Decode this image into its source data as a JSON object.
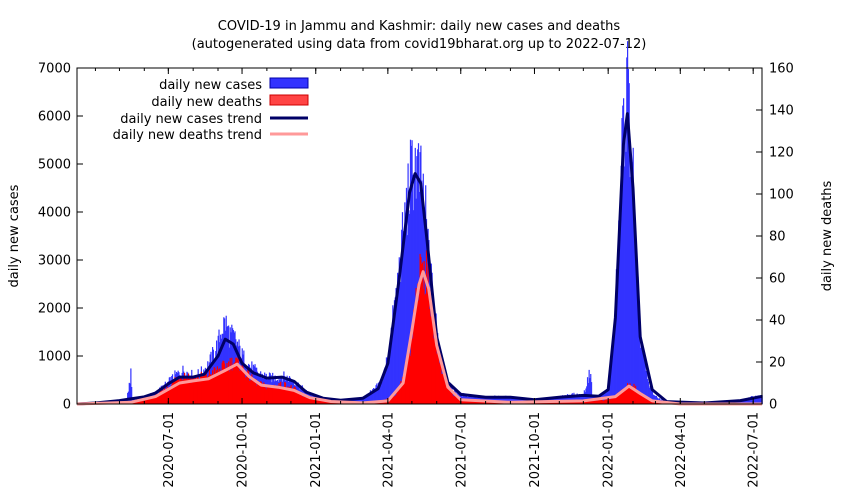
{
  "chart_data": {
    "type": "bar",
    "title": "COVID-19 in Jammu and Kashmir: daily new cases and deaths",
    "subtitle": "(autogenerated using data from covid19bharat.org up to 2022-07-12)",
    "ylabel": "daily new cases",
    "y2label": "daily new deaths",
    "ylim": [
      0,
      7000
    ],
    "y2lim": [
      0,
      160
    ],
    "yticks": [
      0,
      1000,
      2000,
      3000,
      4000,
      5000,
      6000,
      7000
    ],
    "y2ticks": [
      0,
      20,
      40,
      60,
      80,
      100,
      120,
      140,
      160
    ],
    "yticklabels": [
      "0",
      "1000",
      "2000",
      "3000",
      "4000",
      "5000",
      "6000",
      "7000"
    ],
    "y2ticklabels": [
      "0",
      "20",
      "40",
      "60",
      "80",
      "100",
      "120",
      "140",
      "160"
    ],
    "xlim": [
      "2020-03-09",
      "2022-07-12"
    ],
    "xticks": [
      "2020-07-01",
      "2020-10-01",
      "2021-01-01",
      "2021-04-01",
      "2021-07-01",
      "2021-10-01",
      "2022-01-01",
      "2022-04-01",
      "2022-07-01"
    ],
    "legend_position": "top-left",
    "series": [
      {
        "name": "daily new cases",
        "kind": "bars",
        "axis": "y",
        "color": "#3333ff",
        "points": [
          [
            "2020-03-09",
            0
          ],
          [
            "2020-04-01",
            20
          ],
          [
            "2020-04-25",
            70
          ],
          [
            "2020-05-10",
            90
          ],
          [
            "2020-05-15",
            620
          ],
          [
            "2020-05-17",
            80
          ],
          [
            "2020-06-01",
            150
          ],
          [
            "2020-06-15",
            230
          ],
          [
            "2020-07-01",
            450
          ],
          [
            "2020-07-10",
            600
          ],
          [
            "2020-07-20",
            700
          ],
          [
            "2020-08-01",
            580
          ],
          [
            "2020-08-10",
            640
          ],
          [
            "2020-08-20",
            820
          ],
          [
            "2020-09-01",
            1250
          ],
          [
            "2020-09-06",
            1600
          ],
          [
            "2020-09-10",
            1700
          ],
          [
            "2020-09-15",
            1450
          ],
          [
            "2020-09-22",
            1350
          ],
          [
            "2020-10-01",
            1000
          ],
          [
            "2020-10-10",
            800
          ],
          [
            "2020-10-20",
            650
          ],
          [
            "2020-11-01",
            560
          ],
          [
            "2020-11-10",
            540
          ],
          [
            "2020-11-20",
            580
          ],
          [
            "2020-12-01",
            520
          ],
          [
            "2020-12-10",
            400
          ],
          [
            "2020-12-20",
            250
          ],
          [
            "2021-01-01",
            150
          ],
          [
            "2021-01-15",
            90
          ],
          [
            "2021-02-01",
            80
          ],
          [
            "2021-02-15",
            90
          ],
          [
            "2021-03-01",
            130
          ],
          [
            "2021-03-15",
            300
          ],
          [
            "2021-03-25",
            500
          ],
          [
            "2021-04-01",
            1000
          ],
          [
            "2021-04-10",
            2100
          ],
          [
            "2021-04-20",
            3500
          ],
          [
            "2021-04-28",
            4600
          ],
          [
            "2021-05-05",
            5000
          ],
          [
            "2021-05-10",
            4700
          ],
          [
            "2021-05-15",
            4300
          ],
          [
            "2021-05-20",
            3500
          ],
          [
            "2021-05-25",
            2500
          ],
          [
            "2021-06-01",
            1500
          ],
          [
            "2021-06-10",
            650
          ],
          [
            "2021-06-20",
            300
          ],
          [
            "2021-07-01",
            200
          ],
          [
            "2021-07-15",
            160
          ],
          [
            "2021-08-01",
            140
          ],
          [
            "2021-08-15",
            150
          ],
          [
            "2021-09-01",
            140
          ],
          [
            "2021-09-15",
            120
          ],
          [
            "2021-10-01",
            90
          ],
          [
            "2021-10-15",
            100
          ],
          [
            "2021-11-01",
            140
          ],
          [
            "2021-11-15",
            200
          ],
          [
            "2021-12-01",
            180
          ],
          [
            "2021-12-10",
            720
          ],
          [
            "2021-12-12",
            170
          ],
          [
            "2021-12-20",
            150
          ],
          [
            "2022-01-01",
            300
          ],
          [
            "2022-01-08",
            1300
          ],
          [
            "2022-01-15",
            3800
          ],
          [
            "2022-01-20",
            6000
          ],
          [
            "2022-01-25",
            6500
          ],
          [
            "2022-01-31",
            5000
          ],
          [
            "2022-02-05",
            2800
          ],
          [
            "2022-02-10",
            1400
          ],
          [
            "2022-02-20",
            400
          ],
          [
            "2022-03-01",
            150
          ],
          [
            "2022-03-15",
            40
          ],
          [
            "2022-04-01",
            30
          ],
          [
            "2022-05-01",
            20
          ],
          [
            "2022-06-01",
            40
          ],
          [
            "2022-06-20",
            90
          ],
          [
            "2022-07-01",
            150
          ],
          [
            "2022-07-12",
            170
          ]
        ]
      },
      {
        "name": "daily new deaths",
        "kind": "bars",
        "axis": "y2",
        "color": "#ff0000",
        "points": [
          [
            "2020-03-09",
            0
          ],
          [
            "2020-04-15",
            0
          ],
          [
            "2020-05-01",
            0.5
          ],
          [
            "2020-05-15",
            1
          ],
          [
            "2020-06-01",
            2
          ],
          [
            "2020-06-15",
            4
          ],
          [
            "2020-07-01",
            8
          ],
          [
            "2020-07-10",
            12
          ],
          [
            "2020-07-20",
            14
          ],
          [
            "2020-08-01",
            12
          ],
          [
            "2020-08-10",
            13
          ],
          [
            "2020-08-20",
            14
          ],
          [
            "2020-09-01",
            16
          ],
          [
            "2020-09-10",
            18
          ],
          [
            "2020-09-20",
            20
          ],
          [
            "2020-09-28",
            19
          ],
          [
            "2020-10-05",
            15
          ],
          [
            "2020-10-15",
            11
          ],
          [
            "2020-10-25",
            9
          ],
          [
            "2020-11-05",
            8
          ],
          [
            "2020-11-15",
            9
          ],
          [
            "2020-11-25",
            9
          ],
          [
            "2020-12-05",
            7
          ],
          [
            "2020-12-15",
            4
          ],
          [
            "2020-12-25",
            3
          ],
          [
            "2021-01-10",
            1.5
          ],
          [
            "2021-02-01",
            0.8
          ],
          [
            "2021-03-01",
            0.5
          ],
          [
            "2021-03-25",
            1.5
          ],
          [
            "2021-04-10",
            4
          ],
          [
            "2021-04-20",
            12
          ],
          [
            "2021-04-30",
            30
          ],
          [
            "2021-05-05",
            48
          ],
          [
            "2021-05-10",
            60
          ],
          [
            "2021-05-15",
            66
          ],
          [
            "2021-05-20",
            60
          ],
          [
            "2021-05-25",
            45
          ],
          [
            "2021-06-01",
            28
          ],
          [
            "2021-06-10",
            12
          ],
          [
            "2021-06-20",
            5
          ],
          [
            "2021-07-01",
            2
          ],
          [
            "2021-08-01",
            1
          ],
          [
            "2021-09-01",
            0.8
          ],
          [
            "2021-10-01",
            0.5
          ],
          [
            "2021-11-01",
            0.8
          ],
          [
            "2021-12-01",
            1.5
          ],
          [
            "2022-01-01",
            2
          ],
          [
            "2022-01-10",
            4
          ],
          [
            "2022-01-20",
            7
          ],
          [
            "2022-01-27",
            9
          ],
          [
            "2022-02-03",
            8
          ],
          [
            "2022-02-10",
            5
          ],
          [
            "2022-02-20",
            2
          ],
          [
            "2022-03-10",
            0.5
          ],
          [
            "2022-04-01",
            0
          ],
          [
            "2022-07-12",
            0
          ]
        ]
      },
      {
        "name": "daily new cases trend",
        "kind": "line",
        "axis": "y",
        "color": "#000066",
        "points": [
          [
            "2020-03-09",
            0
          ],
          [
            "2020-04-01",
            20
          ],
          [
            "2020-05-01",
            70
          ],
          [
            "2020-06-01",
            150
          ],
          [
            "2020-06-15",
            230
          ],
          [
            "2020-07-01",
            420
          ],
          [
            "2020-07-15",
            560
          ],
          [
            "2020-08-01",
            560
          ],
          [
            "2020-08-15",
            620
          ],
          [
            "2020-09-01",
            1000
          ],
          [
            "2020-09-10",
            1350
          ],
          [
            "2020-09-20",
            1250
          ],
          [
            "2020-10-01",
            850
          ],
          [
            "2020-10-15",
            650
          ],
          [
            "2020-11-01",
            540
          ],
          [
            "2020-11-20",
            560
          ],
          [
            "2020-12-05",
            470
          ],
          [
            "2020-12-20",
            250
          ],
          [
            "2021-01-10",
            120
          ],
          [
            "2021-02-01",
            80
          ],
          [
            "2021-03-01",
            120
          ],
          [
            "2021-03-20",
            320
          ],
          [
            "2021-04-01",
            850
          ],
          [
            "2021-04-15",
            2600
          ],
          [
            "2021-04-28",
            4400
          ],
          [
            "2021-05-05",
            4800
          ],
          [
            "2021-05-12",
            4600
          ],
          [
            "2021-05-20",
            3400
          ],
          [
            "2021-06-01",
            1400
          ],
          [
            "2021-06-15",
            450
          ],
          [
            "2021-07-01",
            200
          ],
          [
            "2021-08-01",
            140
          ],
          [
            "2021-09-01",
            140
          ],
          [
            "2021-10-01",
            90
          ],
          [
            "2021-11-01",
            140
          ],
          [
            "2021-12-01",
            180
          ],
          [
            "2021-12-20",
            160
          ],
          [
            "2022-01-01",
            300
          ],
          [
            "2022-01-10",
            1800
          ],
          [
            "2022-01-20",
            5400
          ],
          [
            "2022-01-25",
            6050
          ],
          [
            "2022-02-01",
            4500
          ],
          [
            "2022-02-10",
            1400
          ],
          [
            "2022-02-25",
            300
          ],
          [
            "2022-03-15",
            50
          ],
          [
            "2022-05-01",
            20
          ],
          [
            "2022-06-15",
            70
          ],
          [
            "2022-07-12",
            160
          ]
        ]
      },
      {
        "name": "daily new deaths trend",
        "kind": "line",
        "axis": "y2",
        "color": "#ff9999",
        "points": [
          [
            "2020-03-09",
            0
          ],
          [
            "2020-05-15",
            0.8
          ],
          [
            "2020-06-15",
            3.5
          ],
          [
            "2020-07-15",
            10
          ],
          [
            "2020-08-01",
            11
          ],
          [
            "2020-08-20",
            12
          ],
          [
            "2020-09-10",
            16
          ],
          [
            "2020-09-25",
            19
          ],
          [
            "2020-10-10",
            13
          ],
          [
            "2020-10-25",
            9
          ],
          [
            "2020-11-15",
            8
          ],
          [
            "2020-12-05",
            6.5
          ],
          [
            "2020-12-25",
            3
          ],
          [
            "2021-01-20",
            1.2
          ],
          [
            "2021-03-01",
            0.5
          ],
          [
            "2021-04-01",
            1.5
          ],
          [
            "2021-04-20",
            10
          ],
          [
            "2021-05-01",
            35
          ],
          [
            "2021-05-10",
            57
          ],
          [
            "2021-05-15",
            63
          ],
          [
            "2021-05-22",
            55
          ],
          [
            "2021-06-01",
            28
          ],
          [
            "2021-06-15",
            8
          ],
          [
            "2021-07-01",
            2
          ],
          [
            "2021-09-01",
            0.8
          ],
          [
            "2021-12-01",
            1.5
          ],
          [
            "2022-01-10",
            3.5
          ],
          [
            "2022-01-27",
            8.5
          ],
          [
            "2022-02-10",
            5
          ],
          [
            "2022-02-25",
            1.5
          ],
          [
            "2022-04-01",
            0
          ],
          [
            "2022-07-12",
            0
          ]
        ]
      }
    ]
  }
}
